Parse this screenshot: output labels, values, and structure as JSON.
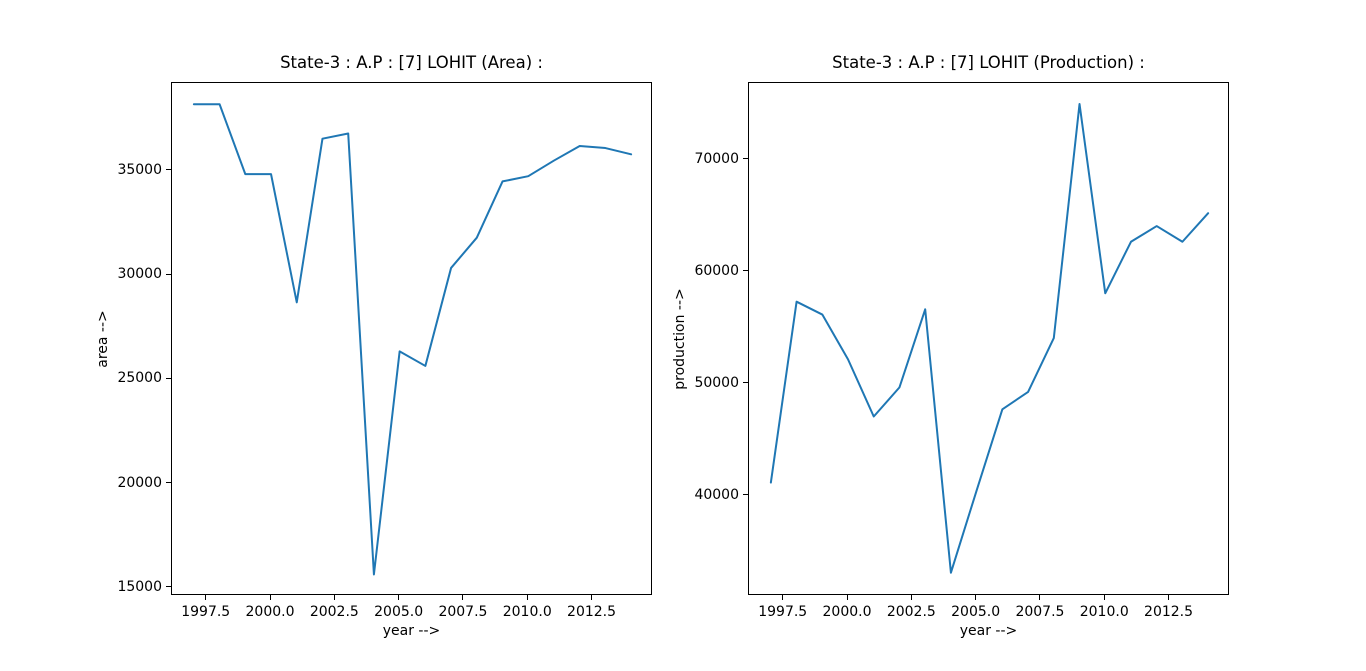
{
  "figure": {
    "background": "#ffffff",
    "line_color": "#1f77b4",
    "frame_color": "#000000"
  },
  "chart_data": [
    {
      "type": "line",
      "title": "State-3 : A.P : [7] LOHIT (Area) :",
      "xlabel": "year -->",
      "ylabel": "area -->",
      "x": [
        1997,
        1998,
        1999,
        2000,
        2001,
        2002,
        2003,
        2004,
        2005,
        2006,
        2007,
        2008,
        2009,
        2010,
        2011,
        2012,
        2013,
        2014
      ],
      "values": [
        38200,
        38200,
        34850,
        34850,
        28700,
        36550,
        36800,
        15650,
        26350,
        25650,
        30350,
        31800,
        34500,
        34750,
        35500,
        36200,
        36100,
        35800
      ],
      "x_ticks": [
        "1997.5",
        "2000.0",
        "2002.5",
        "2005.0",
        "2007.5",
        "2010.0",
        "2012.5"
      ],
      "y_ticks": [
        "15000",
        "20000",
        "25000",
        "30000",
        "35000"
      ],
      "xlim": [
        1996.15,
        2014.85
      ],
      "ylim": [
        14616,
        39220
      ],
      "grid": false,
      "legend": null
    },
    {
      "type": "line",
      "title": "State-3 : A.P : [7] LOHIT (Production) :",
      "xlabel": "year -->",
      "ylabel": "production -->",
      "x": [
        1997,
        1998,
        1999,
        2000,
        2001,
        2002,
        2003,
        2004,
        2005,
        2006,
        2007,
        2008,
        2009,
        2010,
        2011,
        2012,
        2013,
        2014
      ],
      "values": [
        41200,
        57350,
        56200,
        52200,
        47100,
        49700,
        56670,
        33150,
        40500,
        47740,
        49290,
        54100,
        75000,
        58100,
        62700,
        64100,
        62700,
        65250
      ],
      "x_ticks": [
        "1997.5",
        "2000.0",
        "2002.5",
        "2005.0",
        "2007.5",
        "2010.0",
        "2012.5"
      ],
      "y_ticks": [
        "40000",
        "50000",
        "60000",
        "70000"
      ],
      "xlim": [
        1996.15,
        2014.85
      ],
      "ylim": [
        31071,
        76875
      ],
      "grid": false,
      "legend": null
    }
  ]
}
